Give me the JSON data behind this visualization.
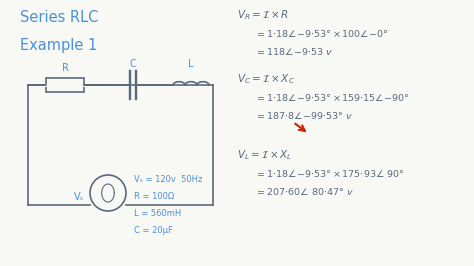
{
  "title_line1": "Series RLC",
  "title_line2": "Example 1",
  "bg_color": "#f8f8f5",
  "blue_color": "#4a90d9",
  "hand_color": "#5a6a7a",
  "red_color": "#cc2200",
  "given_lines": [
    "Vₛ = 120v  50Hz",
    "R = 100Ω",
    "L = 560mH",
    "C = 20μF"
  ]
}
